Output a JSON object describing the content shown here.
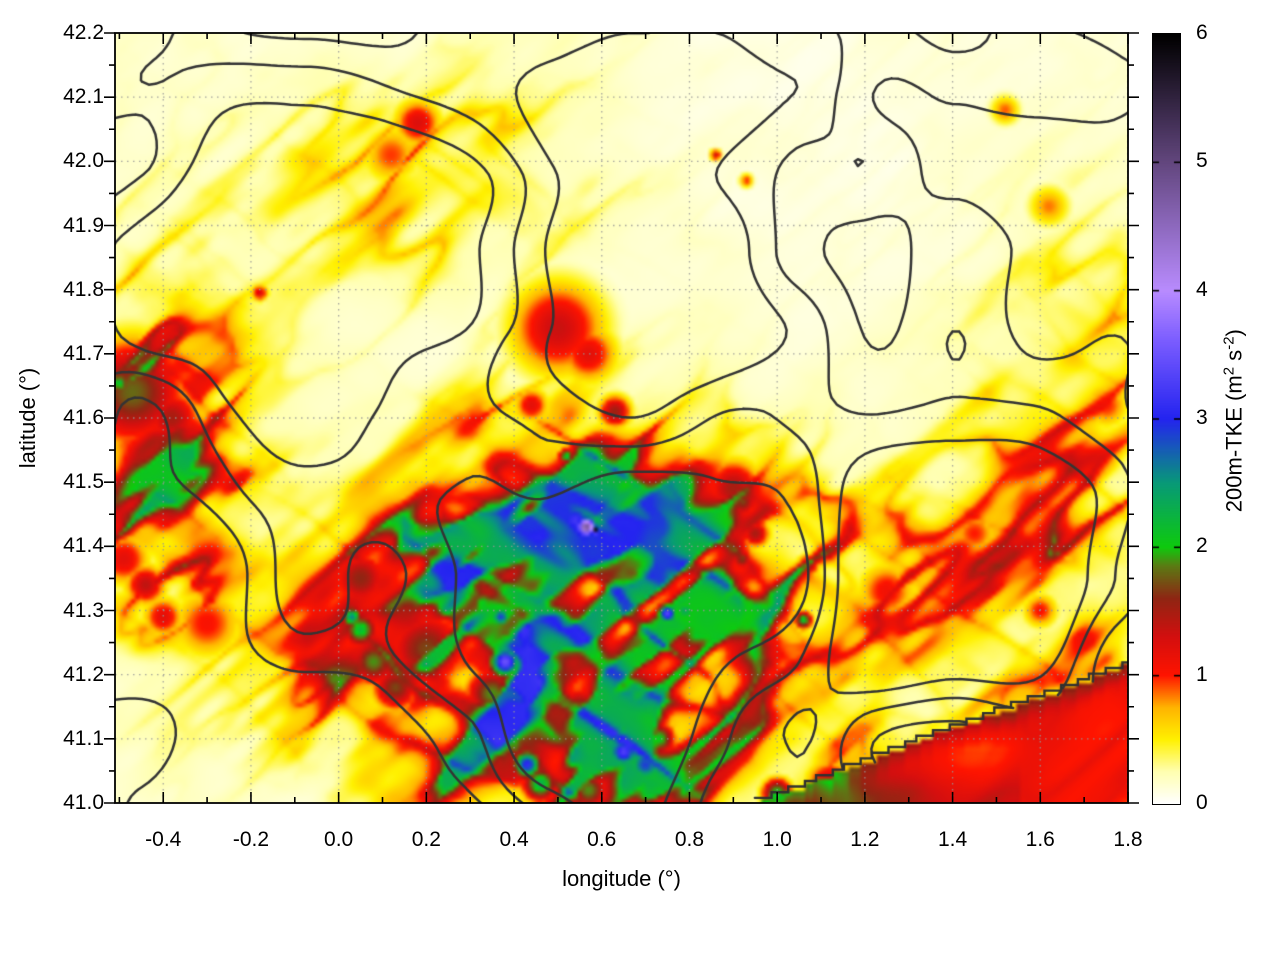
{
  "chart_data": {
    "type": "heatmap",
    "title": "",
    "xlabel": "longitude (°)",
    "ylabel": "latitude (°)",
    "xlim": [
      -0.51,
      1.8
    ],
    "ylim": [
      41.0,
      42.2
    ],
    "grid": "dotted at major ticks",
    "xticks": [
      {
        "value": -0.4,
        "label": "-0.4"
      },
      {
        "value": -0.2,
        "label": "-0.2"
      },
      {
        "value": 0.0,
        "label": "0.0"
      },
      {
        "value": 0.2,
        "label": "0.2"
      },
      {
        "value": 0.4,
        "label": "0.4"
      },
      {
        "value": 0.6,
        "label": "0.6"
      },
      {
        "value": 0.8,
        "label": "0.8"
      },
      {
        "value": 1.0,
        "label": "1.0"
      },
      {
        "value": 1.2,
        "label": "1.2"
      },
      {
        "value": 1.4,
        "label": "1.4"
      },
      {
        "value": 1.6,
        "label": "1.6"
      },
      {
        "value": 1.8,
        "label": "1.8"
      }
    ],
    "yticks": [
      {
        "value": 41.0,
        "label": "41.0"
      },
      {
        "value": 41.1,
        "label": "41.1"
      },
      {
        "value": 41.2,
        "label": "41.2"
      },
      {
        "value": 41.3,
        "label": "41.3"
      },
      {
        "value": 41.4,
        "label": "41.4"
      },
      {
        "value": 41.5,
        "label": "41.5"
      },
      {
        "value": 41.6,
        "label": "41.6"
      },
      {
        "value": 41.7,
        "label": "41.7"
      },
      {
        "value": 41.8,
        "label": "41.8"
      },
      {
        "value": 41.9,
        "label": "41.9"
      },
      {
        "value": 42.0,
        "label": "42.0"
      },
      {
        "value": 42.1,
        "label": "42.1"
      },
      {
        "value": 42.2,
        "label": "42.2"
      }
    ],
    "x_minor_step": 0.1,
    "y_minor_step": 0.05,
    "colorbar": {
      "min": 0,
      "max": 6,
      "ticks": [
        "0",
        "1",
        "2",
        "3",
        "4",
        "5",
        "6"
      ],
      "label_parts": {
        "pre": "200m-TKE (m",
        "sup1": "2",
        "mid": " s",
        "sup2": "-2",
        "post": ")"
      }
    },
    "palette": [
      [
        0.0,
        "#ffffff"
      ],
      [
        0.25,
        "#ffffb0"
      ],
      [
        0.5,
        "#fff100"
      ],
      [
        0.75,
        "#ffb400"
      ],
      [
        1.0,
        "#ff1400"
      ],
      [
        1.3,
        "#d40f0f"
      ],
      [
        1.6,
        "#8f2613"
      ],
      [
        1.85,
        "#5c7a14"
      ],
      [
        2.0,
        "#0ecb0e"
      ],
      [
        2.5,
        "#089a78"
      ],
      [
        3.0,
        "#2424f0"
      ],
      [
        3.6,
        "#7a5cff"
      ],
      [
        4.0,
        "#b98cff"
      ],
      [
        5.0,
        "#63477f"
      ],
      [
        6.0,
        "#000000"
      ]
    ],
    "contours": {
      "color": "#343434",
      "levels": [
        0.445,
        0.525,
        0.6
      ],
      "meaning": "terrain outline overlay"
    },
    "sea_region": {
      "boundary_start": [
        0.93,
        41.0
      ],
      "boundary_end": [
        1.8,
        41.215
      ],
      "tke_body": 0.85,
      "tke_edge": 1.25,
      "tke_bottom": 1.4
    },
    "hotspots": [
      [
        -0.47,
        41.64,
        1.8,
        0.09
      ],
      [
        -0.5,
        41.655,
        2.2,
        0.018
      ],
      [
        -0.43,
        41.68,
        1.3,
        0.045
      ],
      [
        -0.34,
        41.57,
        1.3,
        0.05
      ],
      [
        -0.38,
        41.6,
        1.5,
        0.05
      ],
      [
        -0.49,
        41.47,
        1.3,
        0.04
      ],
      [
        -0.49,
        41.38,
        1.2,
        0.045
      ],
      [
        -0.44,
        41.34,
        1.4,
        0.035
      ],
      [
        -0.4,
        41.29,
        1.2,
        0.035
      ],
      [
        -0.3,
        41.28,
        1.05,
        0.06
      ],
      [
        0.18,
        42.06,
        1.25,
        0.04
      ],
      [
        0.12,
        42.01,
        0.95,
        0.05
      ],
      [
        -0.18,
        41.795,
        1.25,
        0.015
      ],
      [
        0.86,
        42.01,
        1.3,
        0.01
      ],
      [
        0.93,
        41.97,
        1.0,
        0.012
      ],
      [
        1.52,
        42.08,
        0.9,
        0.025
      ],
      [
        1.62,
        41.93,
        0.85,
        0.035
      ],
      [
        0.5,
        41.74,
        1.35,
        0.08
      ],
      [
        0.57,
        41.7,
        1.2,
        0.05
      ],
      [
        0.44,
        41.62,
        1.2,
        0.03
      ],
      [
        0.63,
        41.61,
        1.55,
        0.028
      ],
      [
        0.52,
        41.54,
        2.2,
        0.014
      ],
      [
        0.9,
        41.49,
        1.5,
        0.05
      ],
      [
        0.92,
        41.47,
        1.7,
        0.028
      ],
      [
        0.47,
        41.45,
        1.9,
        0.06
      ],
      [
        0.54,
        41.44,
        3.2,
        0.04
      ],
      [
        0.565,
        41.43,
        4.8,
        0.02
      ],
      [
        0.585,
        41.425,
        6.0,
        0.007
      ],
      [
        0.42,
        41.41,
        2.2,
        0.03
      ],
      [
        0.5,
        41.4,
        2.4,
        0.028
      ],
      [
        0.45,
        41.38,
        1.8,
        0.04
      ],
      [
        0.05,
        41.35,
        1.6,
        0.05
      ],
      [
        0.03,
        41.29,
        2.6,
        0.018
      ],
      [
        0.05,
        41.27,
        2.2,
        0.03
      ],
      [
        0.08,
        41.22,
        1.9,
        0.04
      ],
      [
        0.13,
        41.18,
        1.7,
        0.04
      ],
      [
        0.2,
        41.24,
        1.7,
        0.07
      ],
      [
        0.3,
        41.34,
        1.7,
        0.06
      ],
      [
        0.37,
        41.29,
        2.9,
        0.02
      ],
      [
        0.33,
        41.31,
        2.1,
        0.028
      ],
      [
        0.38,
        41.22,
        3.5,
        0.028
      ],
      [
        0.43,
        41.21,
        2.7,
        0.035
      ],
      [
        0.4,
        41.24,
        2.1,
        0.045
      ],
      [
        0.35,
        41.17,
        1.9,
        0.045
      ],
      [
        0.47,
        41.16,
        1.6,
        0.04
      ],
      [
        0.55,
        41.14,
        1.9,
        0.045
      ],
      [
        0.6,
        41.1,
        2.4,
        0.03
      ],
      [
        0.65,
        41.08,
        3.3,
        0.03
      ],
      [
        0.7,
        41.06,
        2.9,
        0.035
      ],
      [
        0.73,
        41.1,
        2.1,
        0.028
      ],
      [
        0.43,
        41.06,
        3.1,
        0.025
      ],
      [
        0.46,
        41.03,
        2.3,
        0.03
      ],
      [
        0.4,
        41.09,
        1.9,
        0.028
      ],
      [
        0.57,
        41.02,
        1.9,
        0.035
      ],
      [
        0.75,
        41.295,
        3.4,
        0.018
      ],
      [
        0.79,
        41.3,
        2.4,
        0.022
      ],
      [
        1.06,
        41.285,
        2.2,
        0.015
      ],
      [
        1.07,
        41.37,
        1.6,
        0.018
      ],
      [
        0.92,
        41.38,
        1.7,
        0.018
      ],
      [
        0.85,
        41.41,
        1.7,
        0.025
      ],
      [
        0.95,
        41.42,
        1.5,
        0.025
      ],
      [
        0.78,
        41.4,
        1.6,
        0.02
      ],
      [
        1.25,
        41.33,
        1.1,
        0.05
      ],
      [
        1.45,
        41.42,
        1.0,
        0.04
      ],
      [
        1.6,
        41.3,
        1.05,
        0.03
      ],
      [
        1.75,
        41.62,
        1.0,
        0.04
      ],
      [
        1.0,
        41.015,
        2.1,
        0.025
      ],
      [
        1.12,
        41.03,
        1.4,
        0.04
      ]
    ],
    "texture_regions": [
      [
        0.35,
        41.27,
        0.42,
        0.22,
        1.15
      ],
      [
        -0.42,
        41.55,
        0.22,
        0.28,
        0.75
      ],
      [
        0.55,
        41.45,
        0.3,
        0.18,
        0.8
      ],
      [
        0.6,
        41.08,
        0.45,
        0.1,
        0.9
      ],
      [
        1.5,
        41.3,
        0.45,
        0.22,
        0.4
      ],
      [
        0.2,
        41.97,
        0.4,
        0.17,
        0.35
      ],
      [
        1.7,
        41.6,
        0.25,
        0.3,
        0.35
      ],
      [
        0.9,
        41.35,
        0.3,
        0.15,
        0.6
      ]
    ]
  }
}
